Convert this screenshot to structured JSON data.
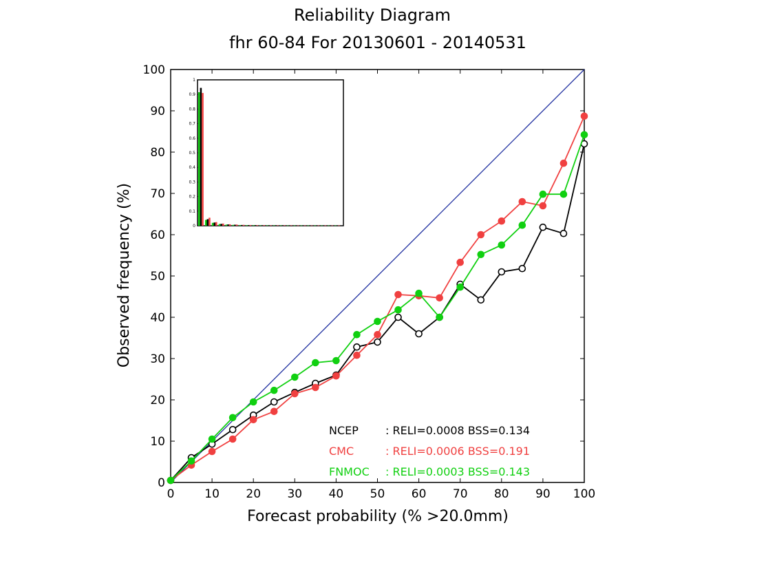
{
  "colors": {
    "ncep": "#000000",
    "cmc": "#f04040",
    "fnmoc": "#10d010",
    "diagonal": "#2030a0",
    "background": "#ffffff"
  },
  "chart_data": {
    "type": "line",
    "title": "Reliability Diagram",
    "subtitle": "fhr 60-84 For 20130601 - 20140531",
    "xlabel": "Forecast probability (% >20.0mm)",
    "ylabel": "Observed frequency (%)",
    "xlim": [
      0,
      100
    ],
    "ylim": [
      0,
      100
    ],
    "xticks": [
      "0",
      "10",
      "20",
      "30",
      "40",
      "50",
      "60",
      "70",
      "80",
      "90",
      "100"
    ],
    "yticks": [
      "0",
      "10",
      "20",
      "30",
      "40",
      "50",
      "60",
      "70",
      "80",
      "90",
      "100"
    ],
    "grid": false,
    "diagonal": [
      [
        0,
        0
      ],
      [
        100,
        100
      ]
    ],
    "x": [
      0,
      5,
      10,
      15,
      20,
      25,
      30,
      35,
      40,
      45,
      50,
      55,
      60,
      65,
      70,
      75,
      80,
      85,
      90,
      95,
      100
    ],
    "series": [
      {
        "name": "NCEP",
        "key": "ncep",
        "marker": "open-circle",
        "legend": ": RELI=0.0008 BSS=0.134",
        "values": [
          0.5,
          6,
          9.3,
          12.8,
          16.3,
          19.5,
          21.8,
          24,
          26,
          32.8,
          34,
          40,
          36,
          40,
          48,
          44.2,
          51,
          51.8,
          61.8,
          60.3,
          82
        ]
      },
      {
        "name": "CMC",
        "key": "cmc",
        "marker": "filled-circle",
        "legend": ": RELI=0.0006 BSS=0.191",
        "values": [
          0.5,
          4.2,
          7.5,
          10.5,
          15.2,
          17.2,
          21.5,
          23,
          25.8,
          30.8,
          35.8,
          45.5,
          45.2,
          44.7,
          53.3,
          60,
          63.3,
          68,
          67,
          77.3,
          88.7
        ]
      },
      {
        "name": "FNMOC",
        "key": "fnmoc",
        "marker": "filled-circle",
        "legend": ": RELI=0.0003 BSS=0.143",
        "values": [
          0.5,
          5.2,
          10.5,
          15.7,
          19.5,
          22.3,
          25.5,
          29,
          29.5,
          35.8,
          39,
          41.8,
          45.8,
          40,
          47.3,
          55.2,
          57.5,
          62.3,
          69.8,
          69.8,
          84.2
        ]
      }
    ],
    "inset": {
      "type": "bar",
      "yticks": [
        "0",
        "0.1",
        "0.2",
        "0.3",
        "0.4",
        "0.5",
        "0.6",
        "0.7",
        "0.8",
        "0.9",
        "1"
      ],
      "ylim": [
        0,
        1
      ],
      "series": [
        {
          "key": "fnmoc",
          "values": [
            0.915,
            0.04,
            0.02,
            0.012,
            0.008,
            0.006,
            0.005,
            0.004,
            0.004,
            0.003,
            0.003,
            0.003,
            0.003,
            0.002,
            0.002,
            0.002,
            0.002,
            0.002,
            0.002,
            0.002,
            0.002
          ]
        },
        {
          "key": "ncep",
          "values": [
            0.945,
            0.045,
            0.022,
            0.013,
            0.009,
            0.007,
            0.005,
            0.004,
            0.004,
            0.003,
            0.003,
            0.003,
            0.003,
            0.002,
            0.002,
            0.002,
            0.002,
            0.002,
            0.002,
            0.002,
            0.002
          ]
        },
        {
          "key": "cmc",
          "values": [
            0.91,
            0.055,
            0.025,
            0.015,
            0.01,
            0.008,
            0.006,
            0.005,
            0.004,
            0.004,
            0.003,
            0.003,
            0.003,
            0.003,
            0.002,
            0.002,
            0.002,
            0.002,
            0.002,
            0.002,
            0.002
          ]
        }
      ]
    }
  }
}
